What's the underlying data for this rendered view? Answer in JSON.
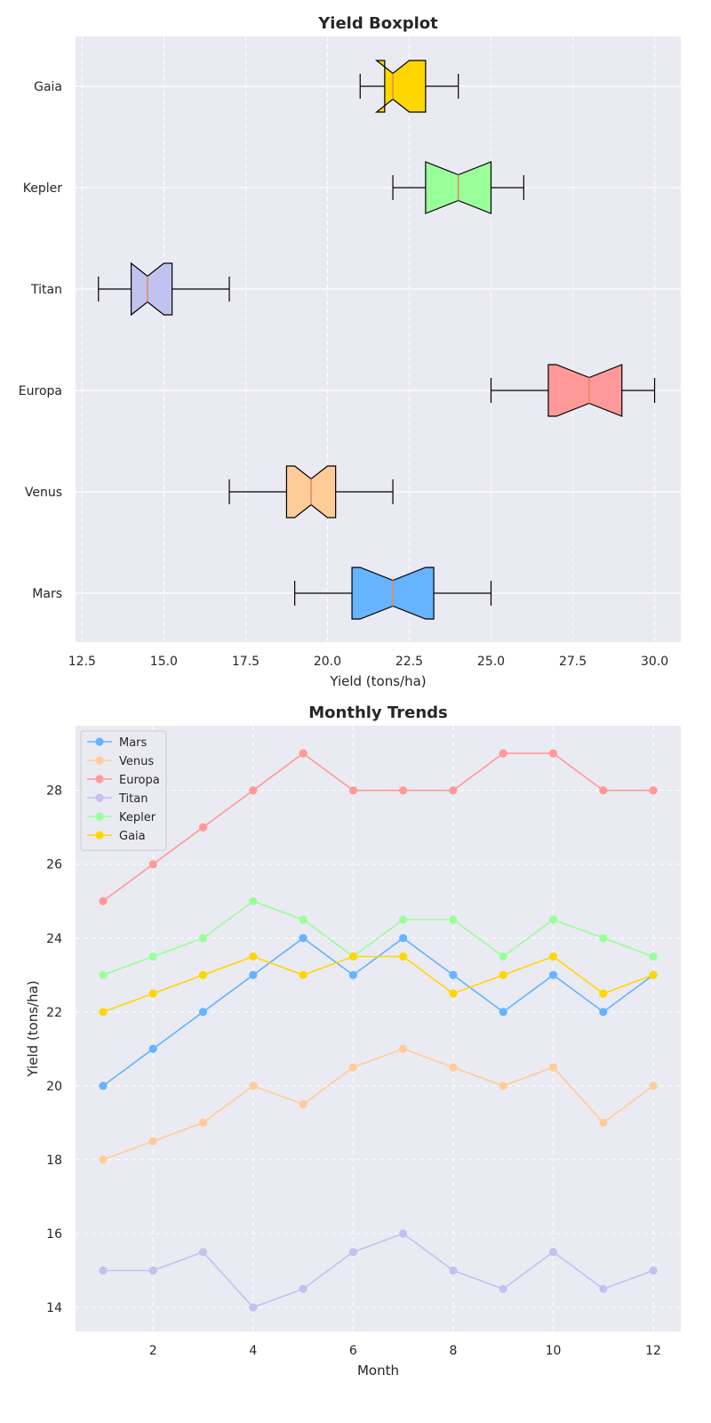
{
  "chart_data": [
    {
      "type": "boxplot",
      "title": "Yield Boxplot",
      "xlabel": "Yield (tons/ha)",
      "ylabel": "",
      "xlim": [
        12.3,
        30.8
      ],
      "xticks": [
        "12.5",
        "15.0",
        "17.5",
        "20.0",
        "22.5",
        "25.0",
        "27.5",
        "30.0"
      ],
      "categories": [
        "Mars",
        "Venus",
        "Europa",
        "Titan",
        "Kepler",
        "Gaia"
      ],
      "grid": true,
      "boxes": [
        {
          "name": "Mars",
          "color": "#66b3ff",
          "whisker_low": 19,
          "q1": 20.75,
          "median": 22,
          "q3": 23.25,
          "whisker_high": 25,
          "notch_low": 21.0,
          "notch_high": 23.0
        },
        {
          "name": "Venus",
          "color": "#ffcc99",
          "whisker_low": 17,
          "q1": 18.75,
          "median": 19.5,
          "q3": 20.25,
          "whisker_high": 22,
          "notch_low": 19.0,
          "notch_high": 20.0
        },
        {
          "name": "Europa",
          "color": "#ff9999",
          "whisker_low": 25,
          "q1": 26.75,
          "median": 28,
          "q3": 29,
          "whisker_high": 30,
          "notch_low": 27.0,
          "notch_high": 29.0
        },
        {
          "name": "Titan",
          "color": "#c2c2f0",
          "whisker_low": 13,
          "q1": 14,
          "median": 14.5,
          "q3": 15.25,
          "whisker_high": 17,
          "notch_low": 14.0,
          "notch_high": 15.0
        },
        {
          "name": "Kepler",
          "color": "#99ff99",
          "whisker_low": 22,
          "q1": 23,
          "median": 24,
          "q3": 25,
          "whisker_high": 26,
          "notch_low": 23.0,
          "notch_high": 25.0
        },
        {
          "name": "Gaia",
          "color": "#ffd700",
          "whisker_low": 21,
          "q1": 21.75,
          "median": 22,
          "q3": 23,
          "whisker_high": 24,
          "notch_low": 21.5,
          "notch_high": 22.5
        }
      ]
    },
    {
      "type": "line",
      "title": "Monthly Trends",
      "xlabel": "Month",
      "ylabel": "Yield (tons/ha)",
      "xlim": [
        0.45,
        12.55
      ],
      "ylim": [
        13.35,
        29.75
      ],
      "xticks": [
        "2",
        "4",
        "6",
        "8",
        "10",
        "12"
      ],
      "yticks": [
        "14",
        "16",
        "18",
        "20",
        "22",
        "24",
        "26",
        "28"
      ],
      "legend": "top-left",
      "grid": true,
      "x": [
        1,
        2,
        3,
        4,
        5,
        6,
        7,
        8,
        9,
        10,
        11,
        12
      ],
      "series": [
        {
          "name": "Mars",
          "color": "#66b3ff",
          "values": [
            20,
            21,
            22,
            23,
            24,
            23,
            24,
            23,
            22,
            23,
            22,
            23
          ]
        },
        {
          "name": "Venus",
          "color": "#ffcc99",
          "values": [
            18,
            18.5,
            19,
            20,
            19.5,
            20.5,
            21,
            20.5,
            20,
            20.5,
            19,
            20
          ]
        },
        {
          "name": "Europa",
          "color": "#ff9999",
          "values": [
            25,
            26,
            27,
            28,
            29,
            28,
            28,
            28,
            29,
            29,
            28,
            28
          ]
        },
        {
          "name": "Titan",
          "color": "#c2c2f0",
          "values": [
            15,
            15,
            15.5,
            14,
            14.5,
            15.5,
            16,
            15,
            14.5,
            15.5,
            14.5,
            15
          ]
        },
        {
          "name": "Kepler",
          "color": "#99ff99",
          "values": [
            23,
            23.5,
            24,
            25,
            24.5,
            23.5,
            24.5,
            24.5,
            23.5,
            24.5,
            24,
            23.5
          ]
        },
        {
          "name": "Gaia",
          "color": "#ffd700",
          "values": [
            22,
            22.5,
            23,
            23.5,
            23,
            23.5,
            23.5,
            22.5,
            23,
            23.5,
            22.5,
            23
          ]
        }
      ]
    }
  ]
}
